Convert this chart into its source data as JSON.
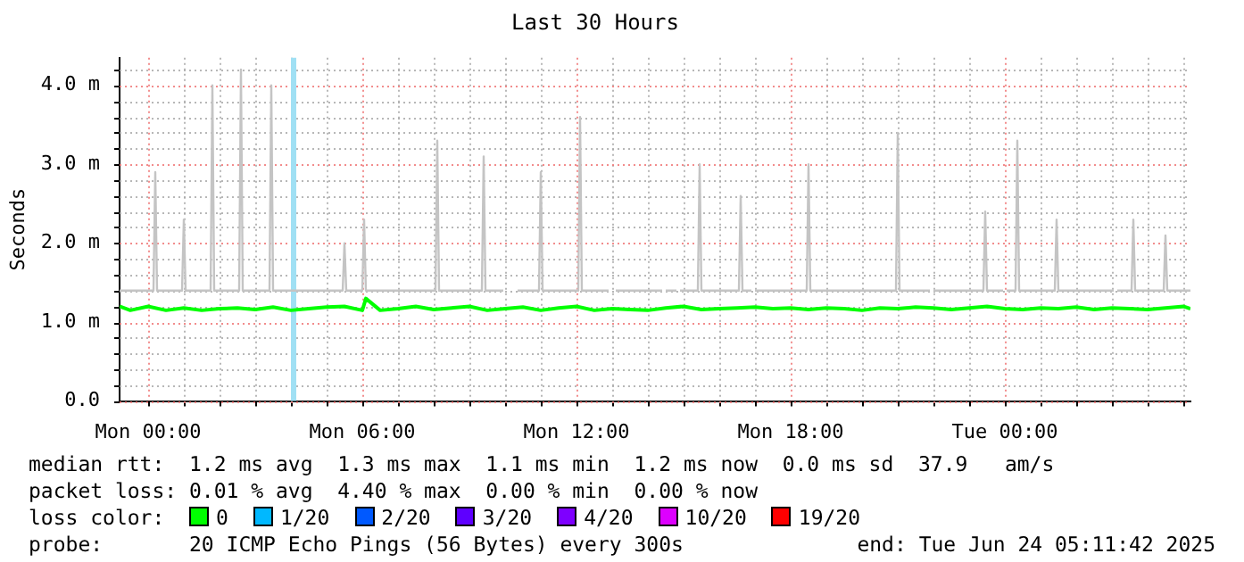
{
  "chart_data": {
    "type": "line",
    "title": "Last 30 Hours",
    "ylabel": "Seconds",
    "xlim": [
      "2025-06-22T23:12",
      "2025-06-24T05:12"
    ],
    "ylim": [
      0,
      4.35
    ],
    "xticks": [
      {
        "value": "2025-06-23T00:00",
        "label": "Mon 00:00"
      },
      {
        "value": "2025-06-23T01:00",
        "label": null
      },
      {
        "value": "2025-06-23T02:00",
        "label": null
      },
      {
        "value": "2025-06-23T03:00",
        "label": null
      },
      {
        "value": "2025-06-23T04:00",
        "label": null
      },
      {
        "value": "2025-06-23T05:00",
        "label": null
      },
      {
        "value": "2025-06-23T06:00",
        "label": "Mon 06:00"
      },
      {
        "value": "2025-06-23T07:00",
        "label": null
      },
      {
        "value": "2025-06-23T08:00",
        "label": null
      },
      {
        "value": "2025-06-23T09:00",
        "label": null
      },
      {
        "value": "2025-06-23T10:00",
        "label": null
      },
      {
        "value": "2025-06-23T11:00",
        "label": null
      },
      {
        "value": "2025-06-23T12:00",
        "label": "Mon 12:00"
      },
      {
        "value": "2025-06-23T13:00",
        "label": null
      },
      {
        "value": "2025-06-23T14:00",
        "label": null
      },
      {
        "value": "2025-06-23T15:00",
        "label": null
      },
      {
        "value": "2025-06-23T16:00",
        "label": null
      },
      {
        "value": "2025-06-23T17:00",
        "label": null
      },
      {
        "value": "2025-06-23T18:00",
        "label": "Mon 18:00"
      },
      {
        "value": "2025-06-23T19:00",
        "label": null
      },
      {
        "value": "2025-06-23T20:00",
        "label": null
      },
      {
        "value": "2025-06-23T21:00",
        "label": null
      },
      {
        "value": "2025-06-23T22:00",
        "label": null
      },
      {
        "value": "2025-06-23T23:00",
        "label": null
      },
      {
        "value": "2025-06-24T00:00",
        "label": "Tue 00:00"
      },
      {
        "value": "2025-06-24T01:00",
        "label": null
      },
      {
        "value": "2025-06-24T02:00",
        "label": null
      },
      {
        "value": "2025-06-24T03:00",
        "label": null
      },
      {
        "value": "2025-06-24T04:00",
        "label": null
      },
      {
        "value": "2025-06-24T05:00",
        "label": null
      }
    ],
    "yticks": [
      {
        "value": 0,
        "label": "0.0"
      },
      {
        "value": 0.2,
        "label": null
      },
      {
        "value": 0.4,
        "label": null
      },
      {
        "value": 0.6,
        "label": null
      },
      {
        "value": 0.8,
        "label": null
      },
      {
        "value": 1,
        "label": "1.0 m"
      },
      {
        "value": 1.2,
        "label": null
      },
      {
        "value": 1.4,
        "label": null
      },
      {
        "value": 1.6,
        "label": null
      },
      {
        "value": 1.8,
        "label": null
      },
      {
        "value": 2,
        "label": "2.0 m"
      },
      {
        "value": 2.2,
        "label": null
      },
      {
        "value": 2.4,
        "label": null
      },
      {
        "value": 2.6,
        "label": null
      },
      {
        "value": 2.8,
        "label": null
      },
      {
        "value": 3,
        "label": "3.0 m"
      },
      {
        "value": 3.2,
        "label": null
      },
      {
        "value": 3.4,
        "label": null
      },
      {
        "value": 3.6,
        "label": null
      },
      {
        "value": 3.8,
        "label": null
      },
      {
        "value": 4,
        "label": "4.0 m"
      },
      {
        "value": 4.2,
        "label": null
      }
    ],
    "grid": true,
    "legend": "bottom",
    "legend_title": "loss color:",
    "marker": "none",
    "bands": [
      {
        "axis": "x",
        "from": "2025-06-23T04:00",
        "to": "2025-06-23T04:09",
        "color": "#a0e0f4"
      }
    ],
    "series": [
      {
        "color": "#c4c4c4",
        "x": [
          "2025-06-22T23:12",
          "2025-06-23T00:09",
          "2025-06-23T00:12",
          "2025-06-23T00:15",
          "2025-06-23T00:57",
          "2025-06-23T01:00",
          "2025-06-23T01:03",
          "2025-06-23T01:45",
          "2025-06-23T01:48",
          "2025-06-23T01:51",
          "2025-06-23T02:33",
          "2025-06-23T02:36",
          "2025-06-23T02:39",
          "2025-06-23T03:24",
          "2025-06-23T03:27",
          "2025-06-23T03:30",
          "2025-06-23T05:27",
          "2025-06-23T05:30",
          "2025-06-23T05:33",
          "2025-06-23T06:00",
          "2025-06-23T06:03",
          "2025-06-23T06:06",
          "2025-06-23T08:03",
          "2025-06-23T08:06",
          "2025-06-23T08:09",
          "2025-06-23T09:21",
          "2025-06-23T09:24",
          "2025-06-23T09:27",
          "2025-06-23T09:57",
          "2025-06-23T10:00",
          "2025-06-23T10:18",
          "2025-06-23T10:21",
          "2025-06-23T10:57",
          "2025-06-23T11:00",
          "2025-06-23T11:03",
          "2025-06-23T12:03",
          "2025-06-23T12:06",
          "2025-06-23T12:09",
          "2025-06-23T12:54",
          "2025-06-23T13:00",
          "2025-06-23T13:06",
          "2025-06-23T14:24",
          "2025-06-23T14:27",
          "2025-06-23T14:30",
          "2025-06-23T14:48",
          "2025-06-23T14:51",
          "2025-06-23T14:54",
          "2025-06-23T15:24",
          "2025-06-23T15:27",
          "2025-06-23T15:30",
          "2025-06-23T16:33",
          "2025-06-23T16:36",
          "2025-06-23T16:39",
          "2025-06-23T16:54",
          "2025-06-23T16:57",
          "2025-06-23T17:00",
          "2025-06-23T18:27",
          "2025-06-23T18:30",
          "2025-06-23T18:33",
          "2025-06-23T20:57",
          "2025-06-23T21:00",
          "2025-06-23T21:03",
          "2025-06-23T21:54",
          "2025-06-23T21:57",
          "2025-06-23T22:00",
          "2025-06-23T23:24",
          "2025-06-23T23:27",
          "2025-06-23T23:30",
          "2025-06-23T23:57",
          "2025-06-24T00:00",
          "2025-06-24T00:03",
          "2025-06-24T00:18",
          "2025-06-24T00:21",
          "2025-06-24T00:24",
          "2025-06-24T01:24",
          "2025-06-24T01:27",
          "2025-06-24T01:30",
          "2025-06-24T03:03",
          "2025-06-24T03:06",
          "2025-06-24T03:09",
          "2025-06-24T03:33",
          "2025-06-24T03:36",
          "2025-06-24T03:39",
          "2025-06-24T04:27",
          "2025-06-24T04:30",
          "2025-06-24T04:33",
          "2025-06-24T05:12"
        ],
        "values": [
          1.4,
          1.4,
          2.9,
          1.4,
          1.4,
          2.3,
          1.4,
          1.4,
          4.0,
          1.4,
          1.4,
          4.2,
          1.4,
          1.4,
          4.0,
          1.4,
          1.4,
          2.0,
          1.4,
          1.4,
          2.3,
          1.4,
          1.4,
          3.3,
          1.4,
          1.4,
          3.1,
          1.4,
          1.4,
          null,
          null,
          1.4,
          1.4,
          2.9,
          1.4,
          1.4,
          3.6,
          1.4,
          1.4,
          null,
          1.4,
          1.4,
          null,
          1.4,
          1.4,
          null,
          1.4,
          1.4,
          3.0,
          1.4,
          1.4,
          2.6,
          1.4,
          1.4,
          null,
          1.4,
          1.4,
          3.0,
          1.4,
          1.4,
          3.4,
          1.4,
          1.4,
          null,
          1.4,
          1.4,
          2.4,
          1.4,
          1.4,
          null,
          1.4,
          1.4,
          3.3,
          1.4,
          1.4,
          2.3,
          1.4,
          1.4,
          null,
          1.4,
          1.4,
          2.3,
          1.4,
          1.4,
          2.1,
          1.4,
          1.4
        ]
      },
      {
        "name": "0",
        "color": "#00ff00",
        "x": [
          "2025-06-22T23:12",
          "2025-06-22T23:30",
          "2025-06-23T00:00",
          "2025-06-23T00:30",
          "2025-06-23T01:00",
          "2025-06-23T01:30",
          "2025-06-23T02:00",
          "2025-06-23T02:30",
          "2025-06-23T03:00",
          "2025-06-23T03:30",
          "2025-06-23T04:00",
          "2025-06-23T04:30",
          "2025-06-23T05:00",
          "2025-06-23T05:30",
          "2025-06-23T06:00",
          "2025-06-23T06:06",
          "2025-06-23T06:30",
          "2025-06-23T07:00",
          "2025-06-23T07:30",
          "2025-06-23T08:00",
          "2025-06-23T08:30",
          "2025-06-23T09:00",
          "2025-06-23T09:30",
          "2025-06-23T10:00",
          "2025-06-23T10:30",
          "2025-06-23T11:00",
          "2025-06-23T11:30",
          "2025-06-23T12:00",
          "2025-06-23T12:30",
          "2025-06-23T13:00",
          "2025-06-23T13:30",
          "2025-06-23T14:00",
          "2025-06-23T14:30",
          "2025-06-23T15:00",
          "2025-06-23T15:30",
          "2025-06-23T16:00",
          "2025-06-23T16:30",
          "2025-06-23T17:00",
          "2025-06-23T17:30",
          "2025-06-23T18:00",
          "2025-06-23T18:30",
          "2025-06-23T19:00",
          "2025-06-23T19:30",
          "2025-06-23T20:00",
          "2025-06-23T20:30",
          "2025-06-23T21:00",
          "2025-06-23T21:30",
          "2025-06-23T22:00",
          "2025-06-23T22:30",
          "2025-06-23T23:00",
          "2025-06-23T23:30",
          "2025-06-24T00:00",
          "2025-06-24T00:30",
          "2025-06-24T01:00",
          "2025-06-24T01:30",
          "2025-06-24T02:00",
          "2025-06-24T02:30",
          "2025-06-24T03:00",
          "2025-06-24T03:30",
          "2025-06-24T04:00",
          "2025-06-24T04:30",
          "2025-06-24T05:00",
          "2025-06-24T05:12"
        ],
        "values": [
          1.2,
          1.15,
          1.2,
          1.15,
          1.18,
          1.15,
          1.17,
          1.18,
          1.16,
          1.19,
          1.15,
          1.17,
          1.19,
          1.2,
          1.15,
          1.3,
          1.15,
          1.17,
          1.2,
          1.16,
          1.18,
          1.2,
          1.15,
          1.17,
          1.19,
          1.15,
          1.18,
          1.2,
          1.15,
          1.17,
          1.16,
          1.15,
          1.18,
          1.2,
          1.16,
          1.17,
          1.18,
          1.19,
          1.17,
          1.18,
          1.16,
          1.18,
          1.17,
          1.15,
          1.18,
          1.17,
          1.19,
          1.18,
          1.16,
          1.18,
          1.2,
          1.17,
          1.16,
          1.18,
          1.17,
          1.19,
          1.16,
          1.18,
          1.17,
          1.16,
          1.18,
          1.2,
          1.17
        ]
      },
      {
        "name": "1/20",
        "color": "#00b8ff"
      },
      {
        "name": "2/20",
        "color": "#0059ff"
      },
      {
        "name": "3/20",
        "color": "#5e00ff"
      },
      {
        "name": "4/20",
        "color": "#7e00ff"
      },
      {
        "name": "10/20",
        "color": "#dd00ff"
      },
      {
        "name": "19/20",
        "color": "#ff0000"
      }
    ],
    "annotations": [
      "median rtt:  1.2 ms avg  1.3 ms max  1.1 ms min  1.2 ms now  0.0 ms sd  37.9   am/s",
      "packet loss: 0.01 % avg  4.40 % max  0.00 % min  0.00 % now",
      "probe:       20 ICMP Echo Pings (56 Bytes) every 300s",
      "end: Tue Jun 24 05:11:42 2025"
    ]
  }
}
